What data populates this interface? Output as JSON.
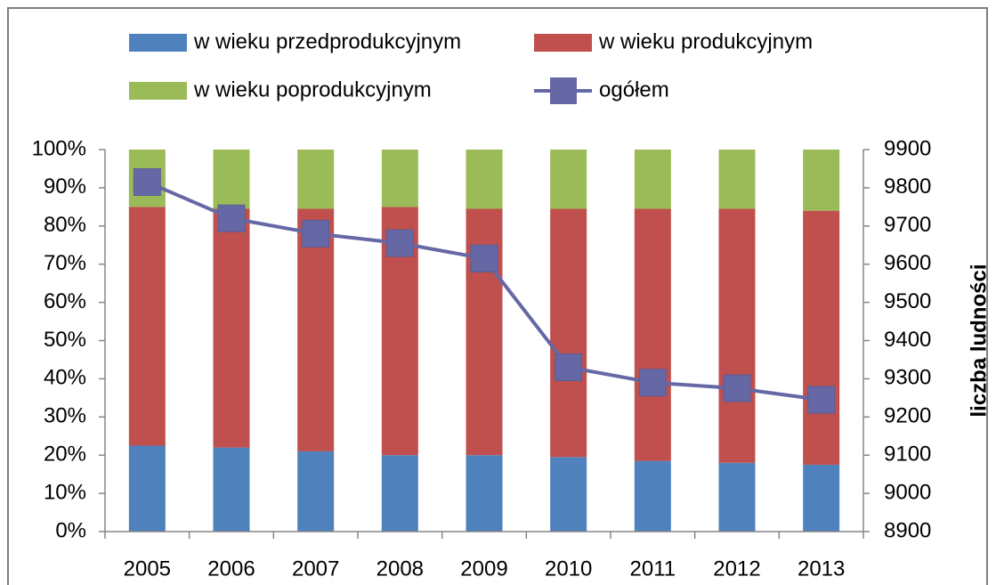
{
  "chart_data": {
    "type": "bar",
    "stacked": true,
    "categories": [
      "2005",
      "2006",
      "2007",
      "2008",
      "2009",
      "2010",
      "2011",
      "2012",
      "2013"
    ],
    "series": [
      {
        "name": "w wieku przedprodukcyjnym",
        "color": "#4f81bd",
        "values": [
          22.5,
          22,
          21,
          20,
          20,
          19.5,
          18.5,
          18,
          17.5
        ]
      },
      {
        "name": "w wieku produkcyjnym",
        "color": "#c0504d",
        "values": [
          62.5,
          62.5,
          63.5,
          65,
          64.5,
          65,
          66,
          66.5,
          66.5
        ]
      },
      {
        "name": "w wieku poprodukcyjnym",
        "color": "#9bbb59",
        "values": [
          15,
          15.5,
          15.5,
          15,
          15.5,
          15.5,
          15.5,
          15.5,
          16
        ]
      },
      {
        "name": "ogółem",
        "color": "#6668a6",
        "type": "line",
        "axis": "y2",
        "values": [
          9815,
          9720,
          9680,
          9655,
          9615,
          9330,
          9290,
          9275,
          9245
        ]
      }
    ],
    "ylim": [
      0,
      100
    ],
    "yticks": [
      {
        "value": 0,
        "label": "0%"
      },
      {
        "value": 10,
        "label": "10%"
      },
      {
        "value": 20,
        "label": "20%"
      },
      {
        "value": 30,
        "label": "30%"
      },
      {
        "value": 40,
        "label": "40%"
      },
      {
        "value": 50,
        "label": "50%"
      },
      {
        "value": 60,
        "label": "60%"
      },
      {
        "value": 70,
        "label": "70%"
      },
      {
        "value": 80,
        "label": "80%"
      },
      {
        "value": 90,
        "label": "90%"
      },
      {
        "value": 100,
        "label": "100%"
      }
    ],
    "y2lim": [
      8900,
      9900
    ],
    "y2ticks": [
      8900,
      9000,
      9100,
      9200,
      9300,
      9400,
      9500,
      9600,
      9700,
      9800,
      9900
    ],
    "y2label": "liczba ludności",
    "grid": false,
    "legend": "top"
  }
}
